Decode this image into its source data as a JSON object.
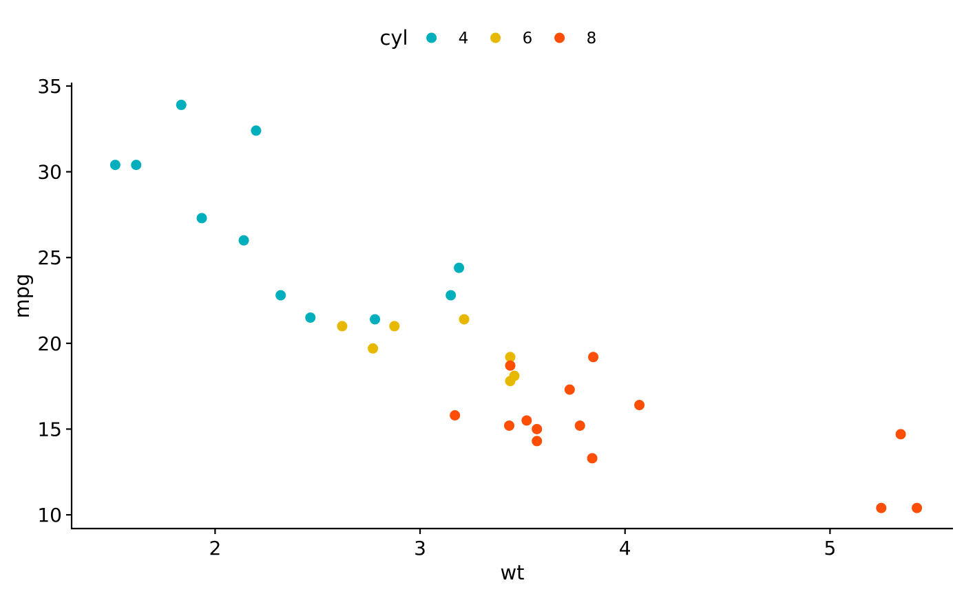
{
  "chart_data": {
    "type": "scatter",
    "title": "",
    "xlabel": "wt",
    "ylabel": "mpg",
    "xlim": [
      1.3,
      5.6
    ],
    "ylim": [
      9.2,
      35.2
    ],
    "x_ticks": [
      2,
      3,
      4,
      5
    ],
    "y_ticks": [
      10,
      15,
      20,
      25,
      30,
      35
    ],
    "x_tick_labels": [
      "2",
      "3",
      "4",
      "5"
    ],
    "y_tick_labels": [
      "10",
      "15",
      "20",
      "25",
      "30",
      "35"
    ],
    "grid": false,
    "legend": {
      "title": "cyl",
      "position": "top"
    },
    "series": [
      {
        "name": "4",
        "color": "#00AFBB",
        "points": [
          {
            "x": 1.513,
            "y": 30.4
          },
          {
            "x": 1.615,
            "y": 30.4
          },
          {
            "x": 1.835,
            "y": 33.9
          },
          {
            "x": 1.935,
            "y": 27.3
          },
          {
            "x": 2.14,
            "y": 26.0
          },
          {
            "x": 2.2,
            "y": 32.4
          },
          {
            "x": 2.32,
            "y": 22.8
          },
          {
            "x": 2.465,
            "y": 21.5
          },
          {
            "x": 2.78,
            "y": 21.4
          },
          {
            "x": 3.15,
            "y": 22.8
          },
          {
            "x": 3.19,
            "y": 24.4
          }
        ]
      },
      {
        "name": "6",
        "color": "#E7B800",
        "points": [
          {
            "x": 2.62,
            "y": 21.0
          },
          {
            "x": 2.77,
            "y": 19.7
          },
          {
            "x": 2.875,
            "y": 21.0
          },
          {
            "x": 3.215,
            "y": 21.4
          },
          {
            "x": 3.44,
            "y": 17.8
          },
          {
            "x": 3.44,
            "y": 19.2
          },
          {
            "x": 3.46,
            "y": 18.1
          }
        ]
      },
      {
        "name": "8",
        "color": "#FC4E07",
        "points": [
          {
            "x": 3.17,
            "y": 15.8
          },
          {
            "x": 3.435,
            "y": 15.2
          },
          {
            "x": 3.44,
            "y": 18.7
          },
          {
            "x": 3.52,
            "y": 15.5
          },
          {
            "x": 3.57,
            "y": 14.3
          },
          {
            "x": 3.57,
            "y": 15.0
          },
          {
            "x": 3.73,
            "y": 17.3
          },
          {
            "x": 3.78,
            "y": 15.2
          },
          {
            "x": 3.84,
            "y": 13.3
          },
          {
            "x": 3.845,
            "y": 19.2
          },
          {
            "x": 4.07,
            "y": 16.4
          },
          {
            "x": 5.25,
            "y": 10.4
          },
          {
            "x": 5.345,
            "y": 14.7
          },
          {
            "x": 5.424,
            "y": 10.4
          }
        ]
      }
    ]
  }
}
